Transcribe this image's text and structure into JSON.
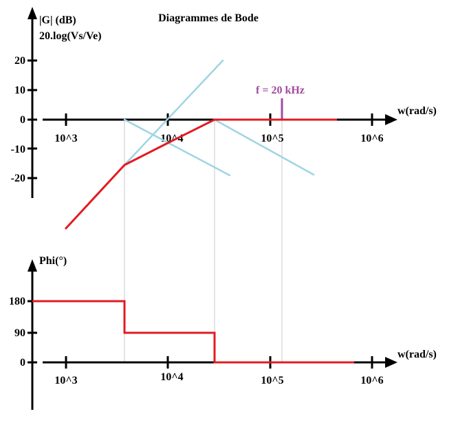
{
  "title": "Diagrammes de Bode",
  "colors": {
    "axis": "#000000",
    "asymptote": "#9fd4e2",
    "curve": "#e11b22",
    "marker": "#a04aa0",
    "guide": "#c8c8c8"
  },
  "gain_plot": {
    "ylabel_line1": "|G| (dB)",
    "ylabel_line2": "20.log(Vs/Ve)",
    "xlabel": "w(rad/s)",
    "y_ticks": [
      "20",
      "10",
      "0",
      "-10",
      "-20"
    ],
    "x_ticks": [
      "10^3",
      "10^4",
      "10^5",
      "10^6"
    ],
    "marker_label": "f = 20 kHz"
  },
  "phase_plot": {
    "ylabel": "Phi(°)",
    "xlabel": "w(rad/s)",
    "y_ticks": [
      "180",
      "90",
      "0"
    ],
    "x_ticks": [
      "10^3",
      "10^4",
      "10^5",
      "10^6"
    ]
  }
}
